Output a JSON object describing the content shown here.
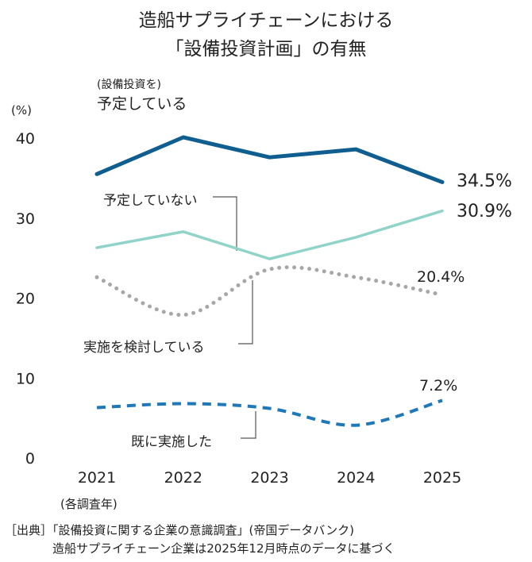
{
  "chart_data": {
    "type": "line",
    "title": "造船サプライチェーンにおける",
    "subtitle": "「設備投資計画」の有無",
    "ylabel": "(%)",
    "xlabel": "(各調査年)",
    "ylim": [
      0,
      40
    ],
    "yticks": [
      "0",
      "10",
      "20",
      "30",
      "40"
    ],
    "categories": [
      "2021",
      "2022",
      "2023",
      "2024",
      "2025"
    ],
    "grid": false,
    "series": [
      {
        "name": "予定している",
        "name_prefix": "(設備投資を)",
        "color": "#0f5e8f",
        "style": "solid",
        "values": [
          35.5,
          40.1,
          37.6,
          38.6,
          34.5
        ],
        "end_label": "34.5%"
      },
      {
        "name": "予定していない",
        "color": "#8fd3c9",
        "style": "solid",
        "values": [
          26.3,
          28.3,
          24.9,
          27.6,
          30.9
        ],
        "end_label": "30.9%"
      },
      {
        "name": "実施を検討している",
        "color": "#a7a7aa",
        "style": "dotted",
        "values": [
          22.6,
          17.9,
          23.6,
          22.6,
          20.4
        ],
        "end_label": "20.4%"
      },
      {
        "name": "既に実施した",
        "color": "#1f78b8",
        "style": "dashed",
        "values": [
          6.3,
          6.8,
          6.2,
          4.1,
          7.2
        ],
        "end_label": "7.2%"
      }
    ]
  },
  "source": {
    "line1": "［出典］「設備投資に関する企業の意識調査」(帝国データバンク)",
    "line2": "造船サプライチェーン企業は2025年12月時点のデータに基づく"
  }
}
